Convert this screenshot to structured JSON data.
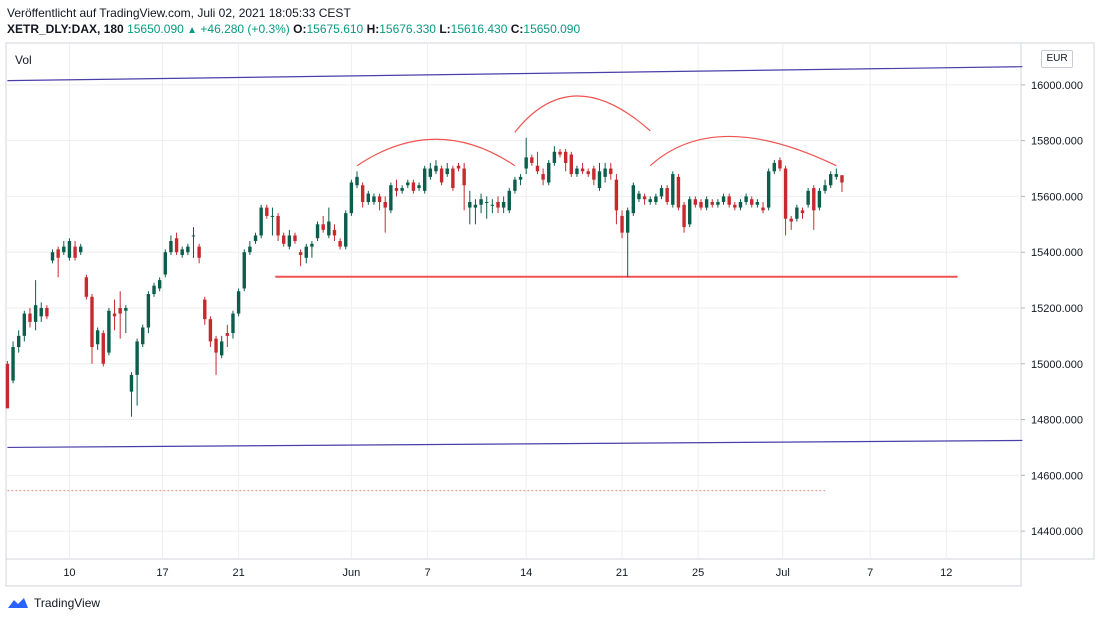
{
  "header": {
    "published": "Veröffentlicht auf TradingView.com, Juli 02, 2021 18:05:33 CEST",
    "symbol": "XETR_DLY:DAX, 180",
    "last": "15650.090",
    "change": "+46.280 (+0.3%)",
    "o_label": "O:",
    "o_value": "15675.610",
    "h_label": "H:",
    "h_value": "15676.330",
    "l_label": "L:",
    "l_value": "15616.430",
    "c_label": "C:",
    "c_value": "15650.090"
  },
  "pane": {
    "vol_label": "Vol",
    "currency": "EUR"
  },
  "footer": {
    "brand": "TradingView"
  },
  "colors": {
    "up": "#0b5e4b",
    "down": "#c62a2f",
    "channel": "#4a3fa8",
    "pattern": "#ef5350",
    "grid": "#eeeeee"
  },
  "chart_data": {
    "type": "candlestick",
    "title": "",
    "ylim": [
      14300,
      16150
    ],
    "y_ticks": [
      "16000.000",
      "15800.000",
      "15600.000",
      "15400.000",
      "15200.000",
      "15000.000",
      "14800.000",
      "14600.000",
      "14400.000"
    ],
    "y_tick_values": [
      16000,
      15800,
      15600,
      15400,
      15200,
      15000,
      14800,
      14600,
      14400
    ],
    "x_tick_labels": [
      "10",
      "17",
      "21",
      "Jun",
      "7",
      "14",
      "21",
      "25",
      "Jul",
      "7",
      "12"
    ],
    "x_tick_bars": [
      22,
      55,
      82,
      122,
      149,
      184,
      218,
      245,
      275,
      306,
      333
    ],
    "bar_count": 360,
    "candles": [
      [
        0,
        15000,
        14840,
        14850,
        15010
      ],
      [
        2,
        14940,
        15060,
        14930,
        15080
      ],
      [
        4,
        15060,
        15100,
        15040,
        15120
      ],
      [
        6,
        15100,
        15180,
        15080,
        15190
      ],
      [
        8,
        15180,
        15150,
        15130,
        15200
      ],
      [
        10,
        15150,
        15210,
        15120,
        15300
      ],
      [
        12,
        15170,
        15200,
        15150,
        15220
      ],
      [
        14,
        15200,
        15170,
        15160,
        15210
      ],
      [
        16,
        15370,
        15400,
        15360,
        15410
      ],
      [
        18,
        15410,
        15380,
        15310,
        15420
      ],
      [
        20,
        15400,
        15420,
        15390,
        15440
      ],
      [
        22,
        15380,
        15440,
        15370,
        15450
      ],
      [
        24,
        15420,
        15380,
        15370,
        15440
      ],
      [
        26,
        15400,
        15420,
        15390,
        15430
      ],
      [
        28,
        15310,
        15240,
        15230,
        15320
      ],
      [
        30,
        15240,
        15060,
        15000,
        15250
      ],
      [
        32,
        15070,
        15120,
        15050,
        15130
      ],
      [
        34,
        15110,
        15000,
        14990,
        15120
      ],
      [
        36,
        15040,
        15190,
        15030,
        15200
      ],
      [
        38,
        15180,
        15170,
        15120,
        15230
      ],
      [
        40,
        15200,
        15180,
        15090,
        15260
      ],
      [
        42,
        15190,
        15200,
        15110,
        15210
      ],
      [
        44,
        14900,
        14960,
        14810,
        14970
      ],
      [
        46,
        14960,
        15080,
        14850,
        15090
      ],
      [
        48,
        15070,
        15130,
        15060,
        15140
      ],
      [
        50,
        15130,
        15250,
        15110,
        15260
      ],
      [
        52,
        15250,
        15280,
        15240,
        15290
      ],
      [
        54,
        15270,
        15300,
        15260,
        15310
      ],
      [
        56,
        15320,
        15400,
        15310,
        15410
      ],
      [
        58,
        15400,
        15440,
        15390,
        15460
      ],
      [
        60,
        15450,
        15400,
        15390,
        15470
      ],
      [
        62,
        15390,
        15410,
        15380,
        15420
      ],
      [
        64,
        15400,
        15420,
        15390,
        15430
      ],
      [
        66,
        15460,
        15460,
        15380,
        15490
      ],
      [
        68,
        15420,
        15380,
        15360,
        15430
      ],
      [
        70,
        15230,
        15160,
        15140,
        15240
      ],
      [
        72,
        15160,
        15080,
        15060,
        15170
      ],
      [
        74,
        15090,
        15040,
        14960,
        15100
      ],
      [
        76,
        15030,
        15080,
        15020,
        15100
      ],
      [
        78,
        15110,
        15100,
        15060,
        15140
      ],
      [
        80,
        15110,
        15180,
        15090,
        15190
      ],
      [
        82,
        15180,
        15260,
        15170,
        15270
      ],
      [
        84,
        15270,
        15400,
        15260,
        15410
      ],
      [
        86,
        15400,
        15420,
        15390,
        15440
      ],
      [
        88,
        15440,
        15460,
        15430,
        15470
      ],
      [
        90,
        15460,
        15560,
        15450,
        15570
      ],
      [
        92,
        15560,
        15530,
        15520,
        15570
      ],
      [
        94,
        15530,
        15530,
        15460,
        15560
      ],
      [
        96,
        15530,
        15460,
        15440,
        15540
      ],
      [
        98,
        15460,
        15430,
        15420,
        15470
      ],
      [
        100,
        15420,
        15460,
        15410,
        15480
      ],
      [
        102,
        15460,
        15440,
        15430,
        15470
      ],
      [
        104,
        15400,
        15390,
        15350,
        15410
      ],
      [
        106,
        15380,
        15420,
        15360,
        15430
      ],
      [
        108,
        15420,
        15430,
        15380,
        15440
      ],
      [
        110,
        15450,
        15500,
        15440,
        15510
      ],
      [
        112,
        15500,
        15480,
        15470,
        15530
      ],
      [
        114,
        15460,
        15510,
        15450,
        15560
      ],
      [
        116,
        15480,
        15460,
        15440,
        15500
      ],
      [
        118,
        15440,
        15420,
        15410,
        15450
      ],
      [
        120,
        15420,
        15540,
        15410,
        15550
      ],
      [
        122,
        15540,
        15650,
        15530,
        15660
      ],
      [
        124,
        15640,
        15670,
        15630,
        15690
      ],
      [
        126,
        15640,
        15580,
        15560,
        15650
      ],
      [
        128,
        15580,
        15610,
        15570,
        15620
      ],
      [
        130,
        15580,
        15600,
        15570,
        15610
      ],
      [
        132,
        15600,
        15580,
        15550,
        15610
      ],
      [
        134,
        15580,
        15560,
        15470,
        15600
      ],
      [
        136,
        15550,
        15640,
        15540,
        15650
      ],
      [
        138,
        15630,
        15620,
        15600,
        15660
      ],
      [
        140,
        15620,
        15630,
        15610,
        15640
      ],
      [
        142,
        15640,
        15650,
        15630,
        15660
      ],
      [
        144,
        15650,
        15620,
        15610,
        15660
      ],
      [
        146,
        15630,
        15640,
        15620,
        15650
      ],
      [
        148,
        15620,
        15700,
        15610,
        15710
      ],
      [
        150,
        15670,
        15700,
        15660,
        15720
      ],
      [
        152,
        15690,
        15710,
        15680,
        15730
      ],
      [
        154,
        15700,
        15650,
        15640,
        15710
      ],
      [
        156,
        15680,
        15700,
        15670,
        15720
      ],
      [
        158,
        15700,
        15630,
        15620,
        15710
      ],
      [
        160,
        15710,
        15700,
        15690,
        15720
      ],
      [
        162,
        15700,
        15640,
        15550,
        15720
      ],
      [
        164,
        15560,
        15580,
        15500,
        15620
      ],
      [
        166,
        15560,
        15570,
        15500,
        15590
      ],
      [
        168,
        15570,
        15590,
        15540,
        15610
      ],
      [
        170,
        15580,
        15580,
        15520,
        15600
      ],
      [
        172,
        15570,
        15570,
        15540,
        15590
      ],
      [
        174,
        15580,
        15560,
        15540,
        15600
      ],
      [
        176,
        15560,
        15580,
        15540,
        15600
      ],
      [
        178,
        15550,
        15620,
        15540,
        15630
      ],
      [
        180,
        15620,
        15660,
        15610,
        15670
      ],
      [
        182,
        15660,
        15670,
        15640,
        15680
      ],
      [
        184,
        15700,
        15740,
        15680,
        15810
      ],
      [
        186,
        15740,
        15720,
        15710,
        15750
      ],
      [
        188,
        15710,
        15690,
        15680,
        15760
      ],
      [
        190,
        15680,
        15660,
        15640,
        15700
      ],
      [
        192,
        15650,
        15720,
        15640,
        15730
      ],
      [
        194,
        15720,
        15760,
        15710,
        15780
      ],
      [
        196,
        15760,
        15750,
        15740,
        15770
      ],
      [
        198,
        15760,
        15720,
        15690,
        15770
      ],
      [
        200,
        15750,
        15680,
        15670,
        15760
      ],
      [
        202,
        15680,
        15700,
        15670,
        15710
      ],
      [
        204,
        15700,
        15690,
        15680,
        15720
      ],
      [
        206,
        15690,
        15680,
        15670,
        15700
      ],
      [
        208,
        15700,
        15660,
        15640,
        15710
      ],
      [
        210,
        15630,
        15690,
        15620,
        15720
      ],
      [
        212,
        15670,
        15700,
        15650,
        15720
      ],
      [
        214,
        15700,
        15680,
        15660,
        15720
      ],
      [
        216,
        15660,
        15550,
        15500,
        15680
      ],
      [
        218,
        15530,
        15470,
        15450,
        15550
      ],
      [
        220,
        15470,
        15550,
        15310,
        15560
      ],
      [
        222,
        15540,
        15640,
        15530,
        15650
      ],
      [
        224,
        15590,
        15610,
        15580,
        15620
      ],
      [
        226,
        15600,
        15590,
        15570,
        15610
      ],
      [
        228,
        15580,
        15590,
        15570,
        15600
      ],
      [
        230,
        15580,
        15600,
        15570,
        15610
      ],
      [
        232,
        15600,
        15630,
        15590,
        15640
      ],
      [
        234,
        15630,
        15580,
        15570,
        15640
      ],
      [
        236,
        15570,
        15680,
        15560,
        15690
      ],
      [
        238,
        15670,
        15560,
        15550,
        15680
      ],
      [
        240,
        15570,
        15490,
        15470,
        15580
      ],
      [
        242,
        15500,
        15590,
        15490,
        15600
      ],
      [
        244,
        15590,
        15570,
        15560,
        15600
      ],
      [
        246,
        15580,
        15560,
        15550,
        15590
      ],
      [
        248,
        15560,
        15590,
        15550,
        15600
      ],
      [
        250,
        15580,
        15570,
        15560,
        15590
      ],
      [
        252,
        15570,
        15580,
        15560,
        15590
      ],
      [
        254,
        15580,
        15600,
        15570,
        15610
      ],
      [
        256,
        15600,
        15570,
        15560,
        15610
      ],
      [
        258,
        15570,
        15560,
        15550,
        15580
      ],
      [
        260,
        15560,
        15580,
        15550,
        15590
      ],
      [
        262,
        15580,
        15600,
        15570,
        15610
      ],
      [
        264,
        15590,
        15570,
        15560,
        15600
      ],
      [
        266,
        15570,
        15580,
        15560,
        15590
      ],
      [
        268,
        15560,
        15550,
        15540,
        15580
      ],
      [
        270,
        15560,
        15690,
        15550,
        15700
      ],
      [
        272,
        15690,
        15720,
        15680,
        15730
      ],
      [
        274,
        15730,
        15700,
        15690,
        15740
      ],
      [
        276,
        15700,
        15520,
        15460,
        15710
      ],
      [
        278,
        15520,
        15510,
        15480,
        15530
      ],
      [
        280,
        15520,
        15560,
        15510,
        15570
      ],
      [
        282,
        15550,
        15540,
        15520,
        15560
      ],
      [
        284,
        15570,
        15620,
        15560,
        15630
      ],
      [
        286,
        15630,
        15550,
        15480,
        15640
      ],
      [
        288,
        15560,
        15620,
        15550,
        15630
      ],
      [
        290,
        15620,
        15640,
        15610,
        15660
      ],
      [
        292,
        15640,
        15680,
        15630,
        15690
      ],
      [
        294,
        15670,
        15680,
        15660,
        15700
      ],
      [
        296,
        15676,
        15650,
        15616,
        15676
      ]
    ],
    "channel_upper": [
      [
        0,
        16015
      ],
      [
        360,
        16065
      ]
    ],
    "channel_lower": [
      [
        0,
        14700
      ],
      [
        360,
        14725
      ]
    ],
    "support_line": [
      [
        95,
        15312
      ],
      [
        337,
        15312
      ]
    ],
    "arcs": [
      {
        "from": [
          124,
          15710
        ],
        "peak": [
          152,
          15805
        ],
        "to": [
          180,
          15710
        ]
      },
      {
        "from": [
          180,
          15830
        ],
        "peak": [
          202,
          15960
        ],
        "to": [
          228,
          15835
        ]
      },
      {
        "from": [
          228,
          15710
        ],
        "peak": [
          256,
          15815
        ],
        "to": [
          294,
          15710
        ]
      }
    ],
    "dashed_level": [
      [
        0,
        14545
      ],
      [
        290,
        14545
      ]
    ]
  }
}
